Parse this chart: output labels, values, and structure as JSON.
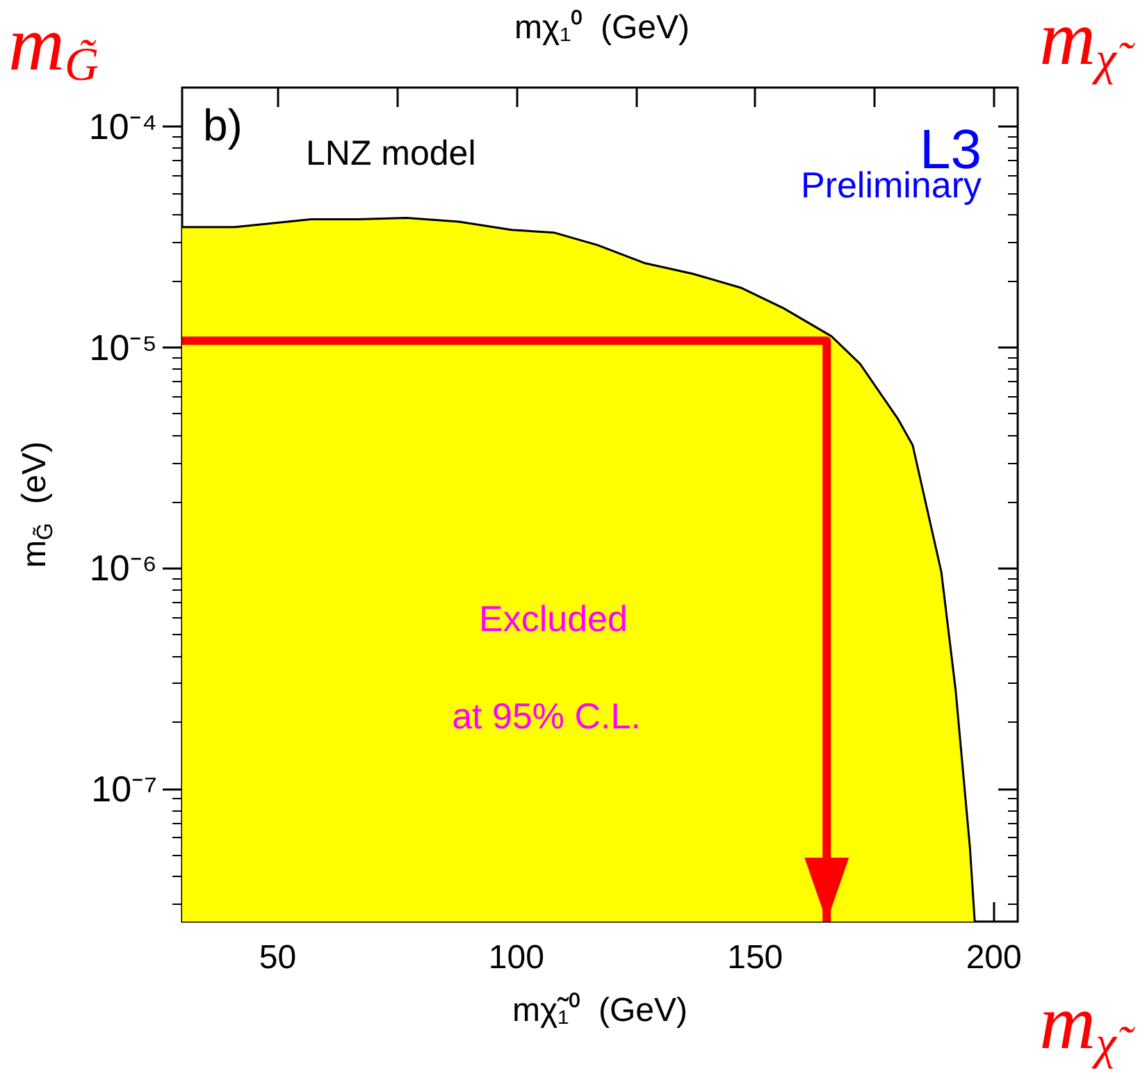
{
  "chart_data": {
    "type": "area",
    "xlabel": "mχ̃₁⁰  (GeV)",
    "ylabel": "m$_{G̃}$  (eV)",
    "log": "y",
    "grid": false,
    "xlim": [
      30,
      205
    ],
    "xticks": [
      50,
      {
        "value": 75,
        "label": null
      },
      100,
      {
        "value": 125,
        "label": null
      },
      150,
      {
        "value": 175,
        "label": null
      },
      200
    ],
    "ylim": [
      2.5e-08,
      0.00015
    ],
    "yticks": [
      {
        "value": 0.0001,
        "label": "10⁻⁴"
      },
      {
        "value": 1e-05,
        "label": "10⁻⁵"
      },
      {
        "value": 1e-06,
        "label": "10⁻⁶"
      },
      {
        "value": 1e-07,
        "label": "10⁻⁷"
      }
    ],
    "annotations": [
      "b)",
      "LNZ model",
      "L3",
      "Preliminary",
      "Excluded",
      "at 95% C.L.",
      "m$_{G̃}$",
      "m$_{χ̃}$",
      "m$_{χ̃}$",
      "mχ₁⁰  (GeV)"
    ],
    "series": [
      {
        "color": "#ffff00",
        "x": [
          30,
          41,
          57,
          67,
          77,
          88,
          99,
          108,
          117,
          127,
          137,
          147,
          156,
          166,
          172,
          180,
          183,
          189,
          192,
          195,
          196
        ],
        "values": [
          3.5e-05,
          3.5e-05,
          3.8e-05,
          3.8e-05,
          3.85e-05,
          3.7e-05,
          3.4e-05,
          3.3e-05,
          2.9e-05,
          2.4e-05,
          2.15e-05,
          1.86e-05,
          1.5e-05,
          1.12e-05,
          8.4e-06,
          4.7e-06,
          3.6e-06,
          9.6e-07,
          2.8e-07,
          5.4e-08,
          2.5e-08
        ]
      },
      {
        "type": "line",
        "color": "#ff0000",
        "x": [
          30,
          165,
          165
        ],
        "values": [
          1.07e-05,
          1.07e-05,
          2.5e-08
        ]
      }
    ]
  }
}
